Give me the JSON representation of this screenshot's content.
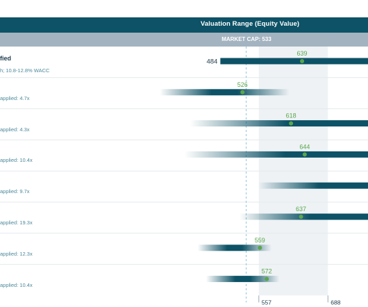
{
  "header": {
    "title": "Valuation Range (Equity Value)",
    "market_cap_label": "MARKET CAP: 533"
  },
  "rows": [
    {
      "title": "fied",
      "label": "h; 10.8-12.8% WACC"
    },
    {
      "label": "applied: 4.7x"
    },
    {
      "label": "applied: 4.3x"
    },
    {
      "label": "applied: 10.4x"
    },
    {
      "label": "applied: 9.7x"
    },
    {
      "label": "applied: 19.3x"
    },
    {
      "label": "applied: 12.3x"
    },
    {
      "label": "applied: 10.4x"
    }
  ],
  "colors": {
    "header": "#0d5266",
    "subheader": "#a3b3c0",
    "bar": "#0d5266",
    "marker": "#5aa64b",
    "market_cap_line": "#8ec6d8",
    "range_band": "#eef2f5"
  },
  "chart_data": {
    "type": "range-bar",
    "title": "Valuation Range (Equity Value)",
    "market_cap": 533,
    "xlabel": "Valuation Range",
    "range_band": [
      557,
      688
    ],
    "xlim": [
      369,
      764
    ],
    "x_ticks": [
      557,
      688
    ],
    "bars": [
      {
        "low": 484,
        "high": 790,
        "point": 639,
        "point_label": "639",
        "low_label": "484",
        "style": "solid"
      },
      {
        "low": 369,
        "high": 615,
        "point": 526,
        "point_label": "526",
        "style": "gradient"
      },
      {
        "low": 426,
        "high": 790,
        "point": 618,
        "point_label": "618",
        "style": "gradient"
      },
      {
        "low": 416,
        "high": 790,
        "point": 644,
        "point_label": "644",
        "style": "gradient"
      },
      {
        "low": 556,
        "high": 790,
        "point": null,
        "point_label": "",
        "style": "gradient-right"
      },
      {
        "low": 520,
        "high": 790,
        "point": 637,
        "point_label": "637",
        "style": "gradient"
      },
      {
        "low": 441,
        "high": 581,
        "point": 559,
        "point_label": "559",
        "style": "gradient"
      },
      {
        "low": 457,
        "high": 596,
        "point": 572,
        "point_label": "572",
        "style": "gradient"
      }
    ]
  }
}
